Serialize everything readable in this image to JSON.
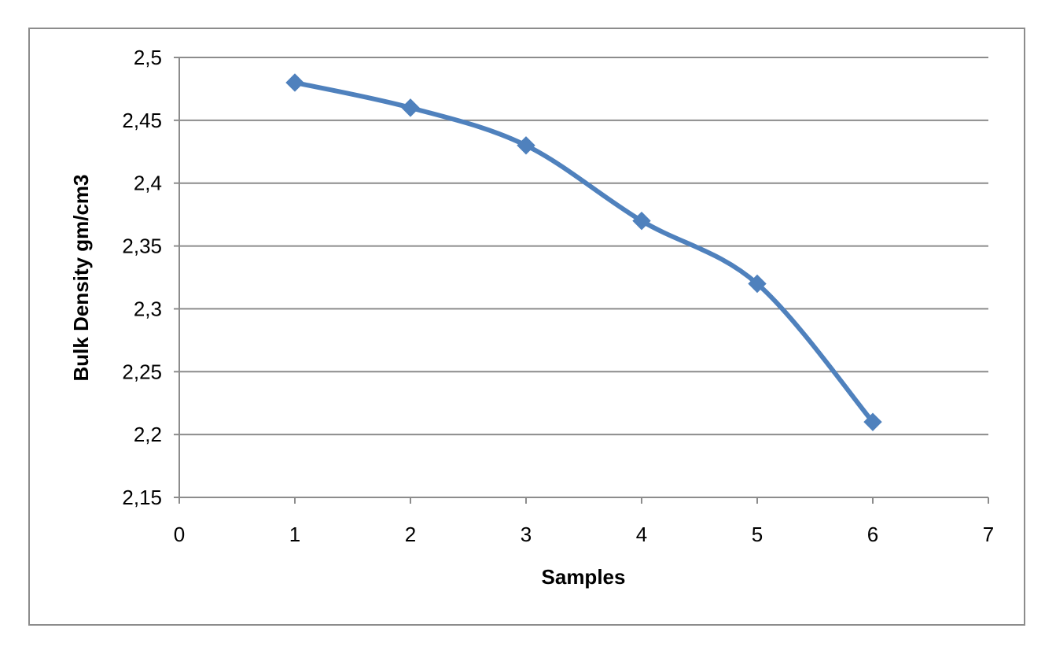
{
  "chart_data": {
    "type": "line",
    "x": [
      1,
      2,
      3,
      4,
      5,
      6
    ],
    "series": [
      {
        "values": [
          2.48,
          2.46,
          2.43,
          2.37,
          2.32,
          2.21
        ],
        "color": "#4f81bd",
        "marker": "diamond",
        "smooth": true
      }
    ],
    "xlabel": "Samples",
    "ylabel": "Bulk Density  gm/cm3",
    "xlim": [
      0,
      7
    ],
    "ylim": [
      2.15,
      2.5
    ],
    "xticks": [
      0,
      1,
      2,
      3,
      4,
      5,
      6,
      7
    ],
    "yticks": [
      2.15,
      2.2,
      2.25,
      2.3,
      2.35,
      2.4,
      2.45,
      2.5
    ],
    "xtick_labels": [
      "0",
      "1",
      "2",
      "3",
      "4",
      "5",
      "6",
      "7"
    ],
    "ytick_labels": [
      "2,15",
      "2,2",
      "2,25",
      "2,3",
      "2,35",
      "2,4",
      "2,45",
      "2,5"
    ],
    "grid": "horizontal",
    "legend": "none",
    "gridline_color": "#8c8c8c"
  }
}
